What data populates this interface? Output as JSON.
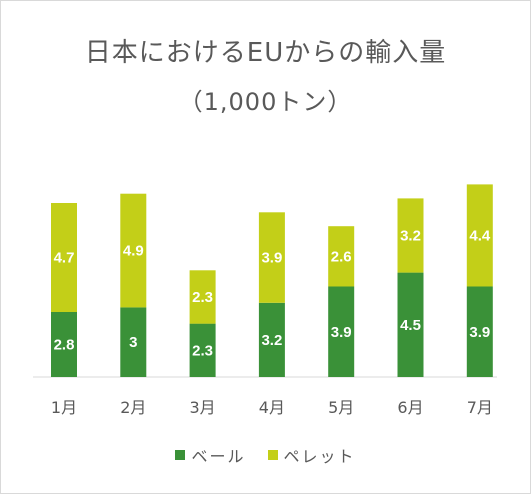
{
  "chart_data": {
    "type": "bar",
    "stacked": true,
    "title": "日本におけるEUからの輸入量",
    "subtitle": "（1,000トン）",
    "categories": [
      "1月",
      "2月",
      "3月",
      "4月",
      "5月",
      "6月",
      "7月"
    ],
    "series": [
      {
        "name": "ベール",
        "color": "#3a9138",
        "values": [
          2.8,
          3,
          2.3,
          3.2,
          3.9,
          4.5,
          3.9
        ],
        "labels": [
          "2.8",
          "3",
          "2.3",
          "3.2",
          "3.9",
          "4.5",
          "3.9"
        ]
      },
      {
        "name": "ペレット",
        "color": "#c3cf18",
        "values": [
          4.7,
          4.9,
          2.3,
          3.9,
          2.6,
          3.2,
          4.4
        ],
        "labels": [
          "4.7",
          "4.9",
          "2.3",
          "3.9",
          "2.6",
          "3.2",
          "4.4"
        ]
      }
    ],
    "ylim": [
      0,
      10
    ],
    "grid": false,
    "legend_position": "bottom"
  }
}
